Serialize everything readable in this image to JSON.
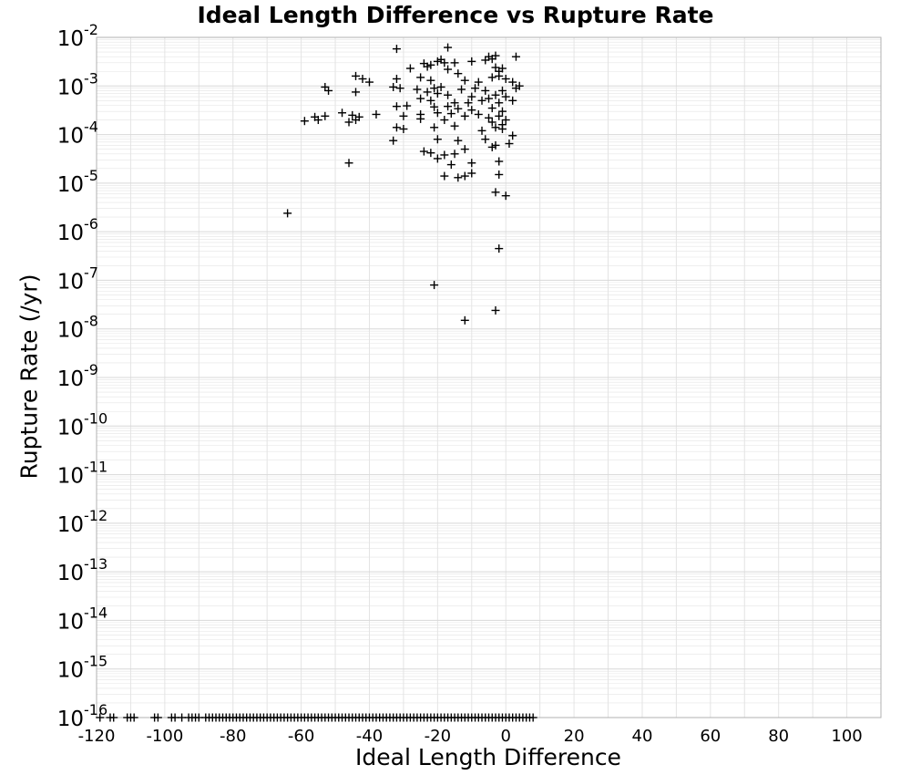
{
  "chart_data": {
    "type": "scatter",
    "title": "Ideal Length Difference vs Rupture Rate",
    "xlabel": "Ideal Length Difference",
    "ylabel": "Rupture Rate (/yr)",
    "xlim": [
      -120,
      110
    ],
    "ylim": [
      1e-16,
      0.01
    ],
    "y_scale": "log",
    "grid": true,
    "legend": "none",
    "marker": "plus",
    "colors": {
      "marker": "#000000",
      "grid": "#e4e4e4",
      "frame": "#b0b0b0"
    },
    "x_ticks": [
      {
        "value": -120,
        "label": "-120"
      },
      {
        "value": -100,
        "label": "-100"
      },
      {
        "value": -80,
        "label": "-80"
      },
      {
        "value": -60,
        "label": "-60"
      },
      {
        "value": -40,
        "label": "-40"
      },
      {
        "value": -20,
        "label": "-20"
      },
      {
        "value": 0,
        "label": "0"
      },
      {
        "value": 20,
        "label": "20"
      },
      {
        "value": 40,
        "label": "40"
      },
      {
        "value": 60,
        "label": "60"
      },
      {
        "value": 80,
        "label": "80"
      },
      {
        "value": 100,
        "label": "100"
      }
    ],
    "y_ticks": [
      {
        "value": 1e-16,
        "base": "10",
        "exp": "-16"
      },
      {
        "value": 1e-15,
        "base": "10",
        "exp": "-15"
      },
      {
        "value": 1e-14,
        "base": "10",
        "exp": "-14"
      },
      {
        "value": 1e-13,
        "base": "10",
        "exp": "-13"
      },
      {
        "value": 1e-12,
        "base": "10",
        "exp": "-12"
      },
      {
        "value": 1e-11,
        "base": "10",
        "exp": "-11"
      },
      {
        "value": 1e-10,
        "base": "10",
        "exp": "-10"
      },
      {
        "value": 1e-09,
        "base": "10",
        "exp": "-9"
      },
      {
        "value": 1e-08,
        "base": "10",
        "exp": "-8"
      },
      {
        "value": 1e-07,
        "base": "10",
        "exp": "-7"
      },
      {
        "value": 1e-06,
        "base": "10",
        "exp": "-6"
      },
      {
        "value": 1e-05,
        "base": "10",
        "exp": "-5"
      },
      {
        "value": 0.0001,
        "base": "10",
        "exp": "-4"
      },
      {
        "value": 0.001,
        "base": "10",
        "exp": "-3"
      },
      {
        "value": 0.01,
        "base": "10",
        "exp": "-2"
      }
    ],
    "points": [
      [
        -32,
        0.0058
      ],
      [
        -17,
        0.0062
      ],
      [
        -19,
        0.0035
      ],
      [
        -20,
        0.0032
      ],
      [
        -18,
        0.003
      ],
      [
        -24,
        0.0029
      ],
      [
        -22,
        0.0027
      ],
      [
        -15,
        0.003
      ],
      [
        -5,
        0.004
      ],
      [
        -3,
        0.0042
      ],
      [
        3,
        0.004
      ],
      [
        -4,
        0.0036
      ],
      [
        -10,
        0.0032
      ],
      [
        -6,
        0.0034
      ],
      [
        -28,
        0.0023
      ],
      [
        -23,
        0.0025
      ],
      [
        -17,
        0.0022
      ],
      [
        -14,
        0.0018
      ],
      [
        -3,
        0.0024
      ],
      [
        -1,
        0.0023
      ],
      [
        -2,
        0.002
      ],
      [
        -44,
        0.0016
      ],
      [
        -42,
        0.0014
      ],
      [
        -40,
        0.0012
      ],
      [
        -32,
        0.0014
      ],
      [
        -25,
        0.0015
      ],
      [
        -22,
        0.0013
      ],
      [
        -12,
        0.0013
      ],
      [
        -8,
        0.0012
      ],
      [
        -4,
        0.0015
      ],
      [
        -2,
        0.0016
      ],
      [
        0,
        0.0014
      ],
      [
        2,
        0.0012
      ],
      [
        4,
        0.001
      ],
      [
        -53,
        0.00095
      ],
      [
        -52,
        0.0008
      ],
      [
        -33,
        0.00095
      ],
      [
        -31,
        0.0009
      ],
      [
        -26,
        0.00085
      ],
      [
        -21,
        0.0009
      ],
      [
        -19,
        0.00095
      ],
      [
        -13,
        0.00085
      ],
      [
        -9,
        0.0009
      ],
      [
        -6,
        0.0008
      ],
      [
        -1,
        0.0008
      ],
      [
        3,
        0.0009
      ],
      [
        -44,
        0.00075
      ],
      [
        -23,
        0.00075
      ],
      [
        -20,
        0.0007
      ],
      [
        -17,
        0.00065
      ],
      [
        -10,
        0.0006
      ],
      [
        -5,
        0.00055
      ],
      [
        -3,
        0.00065
      ],
      [
        0,
        0.0006
      ],
      [
        2,
        0.0005
      ],
      [
        -25,
        0.00055
      ],
      [
        -22,
        0.0005
      ],
      [
        -15,
        0.00045
      ],
      [
        -11,
        0.00045
      ],
      [
        -7,
        0.0005
      ],
      [
        -2,
        0.00045
      ],
      [
        -32,
        0.00038
      ],
      [
        -29,
        0.00039
      ],
      [
        -21,
        0.00037
      ],
      [
        -17,
        0.00038
      ],
      [
        -14,
        0.00034
      ],
      [
        -10,
        0.00032
      ],
      [
        -4,
        0.00035
      ],
      [
        -1,
        0.0003
      ],
      [
        -48,
        0.00028
      ],
      [
        -45,
        0.00025
      ],
      [
        -43,
        0.00023
      ],
      [
        -38,
        0.00026
      ],
      [
        -30,
        0.00024
      ],
      [
        -25,
        0.00026
      ],
      [
        -20,
        0.00028
      ],
      [
        -16,
        0.00027
      ],
      [
        -12,
        0.00024
      ],
      [
        -8,
        0.00026
      ],
      [
        -5,
        0.00022
      ],
      [
        -2,
        0.00024
      ],
      [
        0,
        0.0002
      ],
      [
        -56,
        0.00023
      ],
      [
        -55,
        0.0002
      ],
      [
        -53,
        0.00024
      ],
      [
        -59,
        0.00019
      ],
      [
        -46,
        0.00018
      ],
      [
        -44,
        0.0002
      ],
      [
        -25,
        0.00021
      ],
      [
        -18,
        0.0002
      ],
      [
        -4,
        0.00018
      ],
      [
        -1,
        0.00016
      ],
      [
        -32,
        0.00014
      ],
      [
        -30,
        0.00013
      ],
      [
        -21,
        0.00014
      ],
      [
        -15,
        0.00015
      ],
      [
        -7,
        0.00012
      ],
      [
        -3,
        0.00014
      ],
      [
        -1,
        0.00013
      ],
      [
        2,
        9.5e-05
      ],
      [
        -33,
        7.5e-05
      ],
      [
        -20,
        8e-05
      ],
      [
        -14,
        7.5e-05
      ],
      [
        -6,
        8e-05
      ],
      [
        -3,
        6e-05
      ],
      [
        1,
        6.5e-05
      ],
      [
        -24,
        4.5e-05
      ],
      [
        -22,
        4.2e-05
      ],
      [
        -18,
        3.8e-05
      ],
      [
        -15,
        4e-05
      ],
      [
        -12,
        5e-05
      ],
      [
        -4,
        5.5e-05
      ],
      [
        -20,
        3.2e-05
      ],
      [
        -16,
        2.4e-05
      ],
      [
        -10,
        2.6e-05
      ],
      [
        -2,
        2.8e-05
      ],
      [
        -46,
        2.6e-05
      ],
      [
        -18,
        1.4e-05
      ],
      [
        -14,
        1.3e-05
      ],
      [
        -12,
        1.4e-05
      ],
      [
        -10,
        1.6e-05
      ],
      [
        -2,
        1.5e-05
      ],
      [
        -3,
        6.5e-06
      ],
      [
        0,
        5.5e-06
      ],
      [
        -64,
        2.4e-06
      ],
      [
        -2,
        4.5e-07
      ],
      [
        -21,
        8e-08
      ],
      [
        -3,
        2.4e-08
      ],
      [
        -12,
        1.5e-08
      ]
    ],
    "floor_points": [
      -119,
      -116,
      -115,
      -111,
      -110,
      -109,
      -103,
      -102,
      -98,
      -97,
      -95,
      -93,
      -92,
      -91,
      -90,
      -88,
      -87,
      -86,
      -85,
      -84,
      -83,
      -82,
      -81,
      -80,
      -79,
      -78,
      -77,
      -76,
      -75,
      -74,
      -73,
      -72,
      -71,
      -70,
      -69,
      -68,
      -67,
      -66,
      -65,
      -64,
      -63,
      -62,
      -61,
      -60,
      -59,
      -58,
      -57,
      -56,
      -55,
      -54,
      -53,
      -52,
      -51,
      -50,
      -49,
      -48,
      -47,
      -46,
      -45,
      -44,
      -43,
      -42,
      -41,
      -40,
      -39,
      -38,
      -37,
      -36,
      -35,
      -34,
      -33,
      -32,
      -31,
      -30,
      -29,
      -28,
      -27,
      -26,
      -25,
      -24,
      -23,
      -22,
      -21,
      -20,
      -19,
      -18,
      -17,
      -16,
      -15,
      -14,
      -13,
      -12,
      -11,
      -10,
      -9,
      -8,
      -7,
      -6,
      -5,
      -4,
      -3,
      -2,
      -1,
      0,
      1,
      2,
      3,
      4,
      5,
      6,
      7,
      8
    ]
  }
}
